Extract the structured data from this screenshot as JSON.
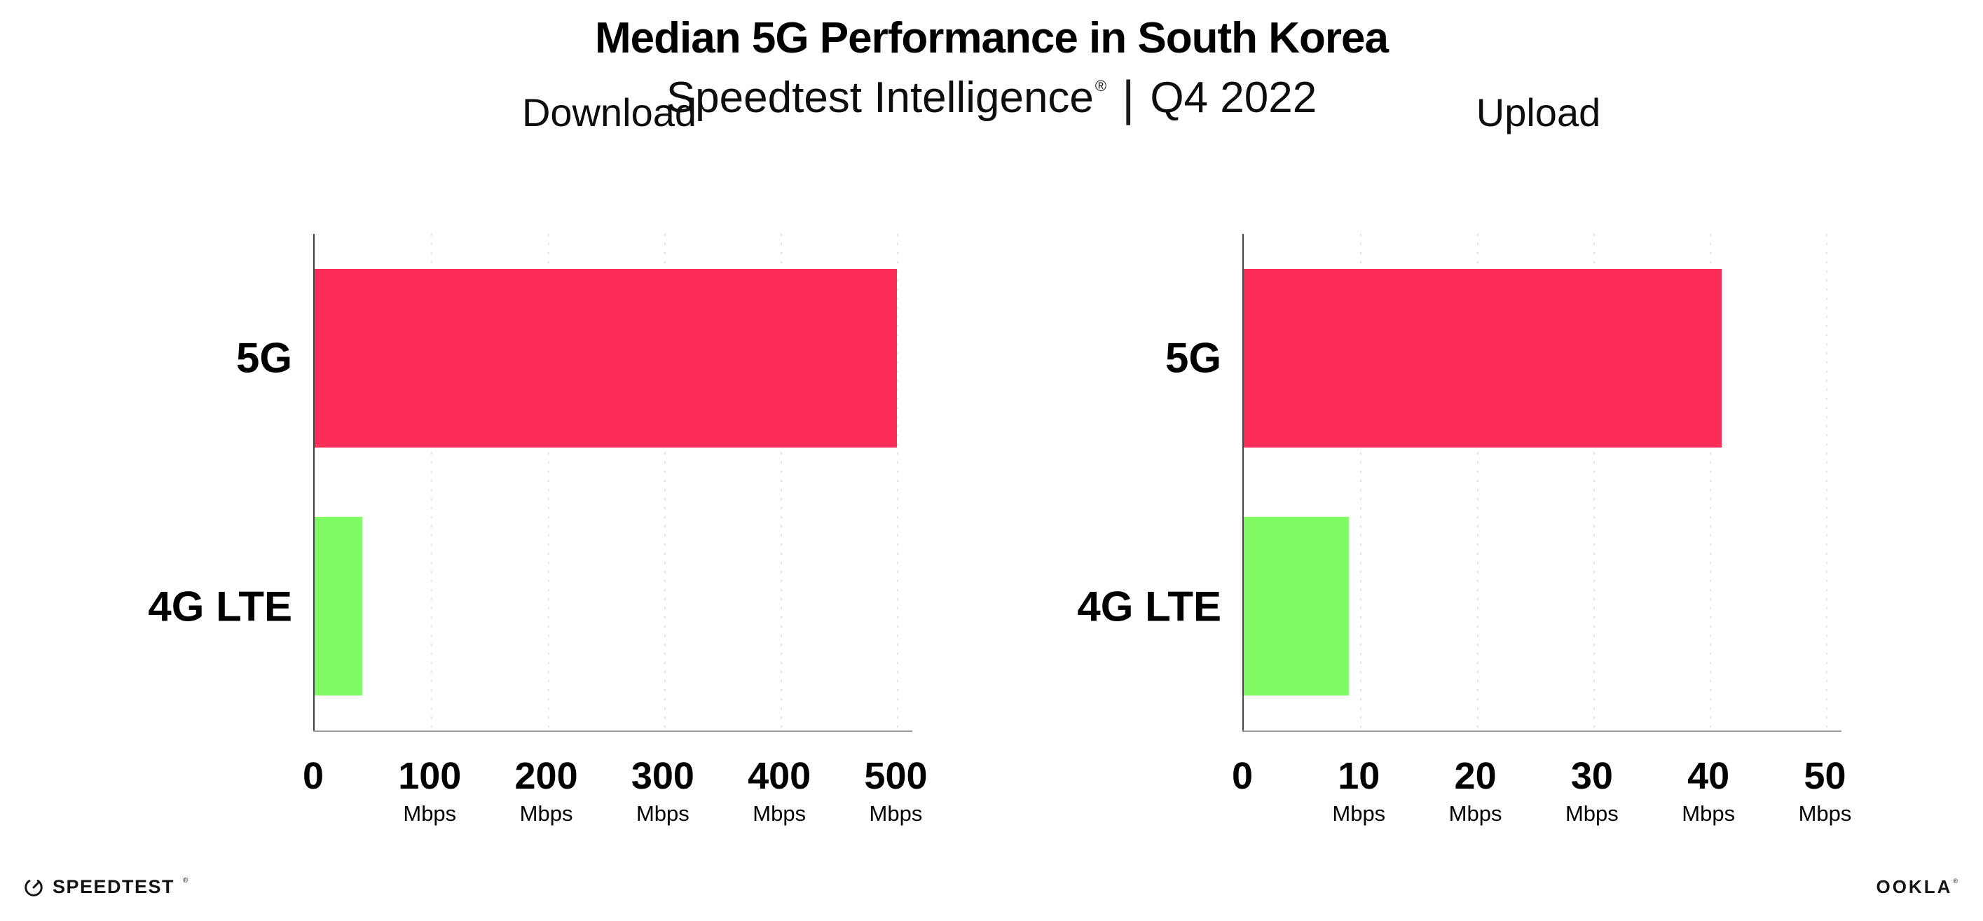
{
  "header": {
    "title": "Median 5G Performance in South Korea",
    "subtitle_brand": "Speedtest Intelligence",
    "subtitle_reg": "®",
    "subtitle_separator": "|",
    "subtitle_period": "Q4 2022"
  },
  "footer": {
    "speedtest_label": "SPEEDTEST",
    "speedtest_reg": "®",
    "ookla_label": "OOKLA",
    "ookla_reg": "®"
  },
  "colors": {
    "bar_5g": "#FC2D56",
    "bar_4g_lte": "#80FB63",
    "gridline": "#E2E2EC",
    "x_axis_line": "#9B9B9B",
    "y_axis_line": "#454545",
    "text": "#000000"
  },
  "chart_data": [
    {
      "type": "bar",
      "orientation": "horizontal",
      "title": "Download",
      "categories": [
        "5G",
        "4G LTE"
      ],
      "values": [
        500,
        41
      ],
      "unit": "Mbps",
      "xlim": [
        0,
        508
      ],
      "xticks": [
        0,
        100,
        200,
        300,
        400,
        500
      ],
      "tick_unit": "Mbps",
      "grid": "vertical-dotted",
      "legend": "none",
      "bar_colors": [
        "#FC2D56",
        "#80FB63"
      ]
    },
    {
      "type": "bar",
      "orientation": "horizontal",
      "title": "Upload",
      "categories": [
        "5G",
        "4G LTE"
      ],
      "values": [
        41,
        9
      ],
      "unit": "Mbps",
      "xlim": [
        0,
        50.8
      ],
      "xticks": [
        0,
        10,
        20,
        30,
        40,
        50
      ],
      "tick_unit": "Mbps",
      "grid": "vertical-dotted",
      "legend": "none",
      "bar_colors": [
        "#FC2D56",
        "#80FB63"
      ]
    }
  ]
}
